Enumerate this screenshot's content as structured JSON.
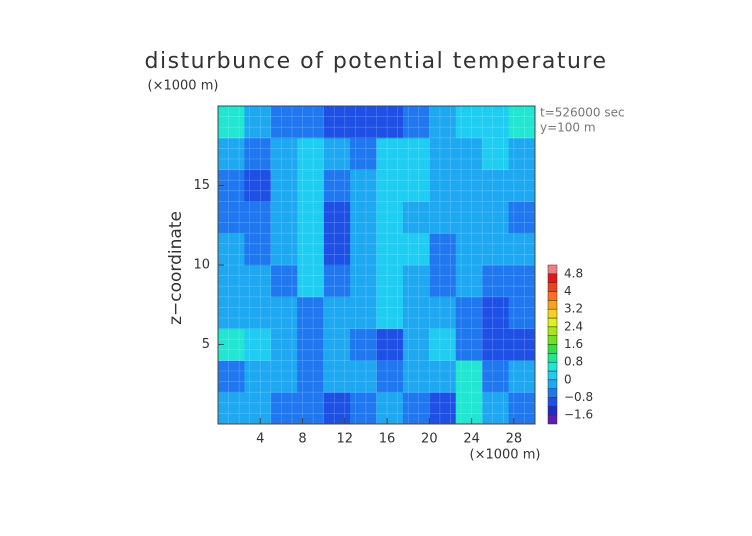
{
  "chart_data": {
    "type": "contour",
    "title": "disturbunce of potential temperature",
    "ylabel": "z−coordinate",
    "xunit": "(×1000 m)",
    "yunit": "(×1000 m)",
    "annotations": [
      "t=526000 sec",
      "y=100 m"
    ],
    "xlim": [
      0,
      30
    ],
    "ylim": [
      0,
      20
    ],
    "xticks": [
      4,
      8,
      12,
      16,
      20,
      24,
      28
    ],
    "yticks": [
      5,
      10,
      15
    ],
    "x": [
      1.25,
      3.75,
      6.25,
      8.75,
      11.25,
      13.75,
      16.25,
      18.75,
      21.25,
      23.75,
      26.25,
      28.75
    ],
    "z": [
      1,
      3,
      5,
      7,
      9,
      11,
      13,
      15,
      17,
      19
    ],
    "values": [
      [
        -0.4,
        -0.3,
        -0.6,
        -0.8,
        -0.9,
        -0.6,
        -0.3,
        -0.6,
        -0.9,
        0.4,
        -0.3,
        -0.6
      ],
      [
        -0.7,
        -0.3,
        -0.3,
        -0.5,
        -0.2,
        -0.4,
        -0.6,
        -0.2,
        -0.3,
        0.5,
        -0.5,
        -0.3
      ],
      [
        0.6,
        0.3,
        -0.2,
        -0.6,
        -0.4,
        -0.8,
        -1.0,
        -0.3,
        0.3,
        -0.7,
        -1.1,
        -0.9
      ],
      [
        -0.3,
        -0.2,
        -0.3,
        -0.5,
        -0.2,
        -0.2,
        0.0,
        -0.2,
        -0.3,
        -0.5,
        -1.0,
        -0.6
      ],
      [
        -0.2,
        -0.4,
        -0.5,
        0.1,
        -0.7,
        -0.1,
        0.2,
        -0.1,
        -0.6,
        -0.3,
        -0.8,
        -0.5
      ],
      [
        -0.2,
        -0.6,
        -0.3,
        0.1,
        -1.1,
        -0.2,
        0.1,
        0.0,
        -0.5,
        -0.4,
        -0.2,
        -0.3
      ],
      [
        -0.5,
        -0.8,
        -0.2,
        0.0,
        -1.0,
        -0.2,
        0.2,
        -0.1,
        -0.2,
        -0.4,
        -0.3,
        -0.5
      ],
      [
        -0.7,
        -0.9,
        -0.3,
        0.1,
        -0.7,
        -0.3,
        0.2,
        0.1,
        -0.2,
        -0.3,
        -0.2,
        -0.4
      ],
      [
        -0.3,
        -0.6,
        -0.2,
        0.1,
        -0.2,
        -0.5,
        0.1,
        0.2,
        -0.2,
        -0.3,
        0.0,
        -0.2
      ],
      [
        0.5,
        -0.2,
        -0.6,
        -0.8,
        -1.0,
        -1.2,
        -1.0,
        -0.6,
        -0.3,
        0.2,
        0.3,
        0.7
      ]
    ],
    "levels": [
      -2.0,
      -1.6,
      -1.2,
      -0.8,
      -0.4,
      0,
      0.4,
      0.8,
      1.2,
      1.6,
      2.0,
      2.4,
      2.8,
      3.2,
      3.6,
      4.0,
      4.4,
      4.8,
      5.2
    ],
    "colors": [
      "#5a1fb0",
      "#1c2ad0",
      "#1e50e6",
      "#1f78f0",
      "#1ea8f2",
      "#1fcdf2",
      "#20e6d2",
      "#22e88a",
      "#30e040",
      "#70e020",
      "#a8e818",
      "#e0f020",
      "#f8d020",
      "#f8a020",
      "#f87020",
      "#f04020",
      "#e01818",
      "#f08080"
    ],
    "colorbar_ticks": [
      {
        "value": -1.6,
        "label": "−1.6"
      },
      {
        "value": -0.8,
        "label": "−0.8"
      },
      0,
      0.8,
      1.6,
      2.4,
      3.2,
      4,
      4.8
    ]
  }
}
